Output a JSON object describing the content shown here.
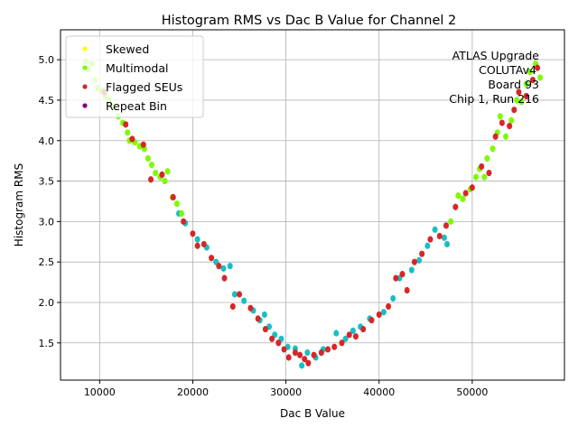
{
  "chart_data": {
    "type": "scatter",
    "title": "Histogram RMS vs Dac B Value for Channel 2",
    "xlabel": "Dac B Value",
    "ylabel": "Histogram RMS",
    "xlim": [
      5800,
      59900
    ],
    "ylim": [
      1.04,
      5.37
    ],
    "xticks": [
      10000,
      20000,
      30000,
      40000,
      50000
    ],
    "yticks": [
      1.5,
      2.0,
      2.5,
      3.0,
      3.5,
      4.0,
      4.5,
      5.0
    ],
    "xtick_labels": [
      "10000",
      "20000",
      "30000",
      "40000",
      "50000"
    ],
    "ytick_labels": [
      "1.5",
      "2.0",
      "2.5",
      "3.0",
      "3.5",
      "4.0",
      "4.5",
      "5.0"
    ],
    "grid": true,
    "legend_placement": "upper-left",
    "legend": [
      {
        "name": "Skewed",
        "color": "#ffff00"
      },
      {
        "name": "Multimodal",
        "color": "#7cfc00"
      },
      {
        "name": "Flagged SEUs",
        "color": "#d62728"
      },
      {
        "name": "Repeat Bin",
        "color": "#800080"
      }
    ],
    "annotation": [
      "ATLAS Upgrade",
      "COLUTAv4",
      "Board 93",
      "Chip 1, Run 216"
    ],
    "series": [
      {
        "color": "#17bfc4",
        "points": [
          [
            18500,
            3.1
          ],
          [
            19200,
            2.98
          ],
          [
            20500,
            2.78
          ],
          [
            21500,
            2.68
          ],
          [
            22500,
            2.5
          ],
          [
            23300,
            2.42
          ],
          [
            24000,
            2.45
          ],
          [
            24500,
            2.1
          ],
          [
            25500,
            2.02
          ],
          [
            26500,
            1.9
          ],
          [
            27200,
            1.78
          ],
          [
            27700,
            1.85
          ],
          [
            28200,
            1.7
          ],
          [
            28800,
            1.6
          ],
          [
            29500,
            1.55
          ],
          [
            30200,
            1.45
          ],
          [
            31000,
            1.43
          ],
          [
            31700,
            1.22
          ],
          [
            32300,
            1.38
          ],
          [
            33200,
            1.32
          ],
          [
            34000,
            1.42
          ],
          [
            35400,
            1.62
          ],
          [
            36400,
            1.55
          ],
          [
            37200,
            1.65
          ],
          [
            38000,
            1.7
          ],
          [
            39000,
            1.8
          ],
          [
            40500,
            1.88
          ],
          [
            41500,
            2.05
          ],
          [
            42200,
            2.3
          ],
          [
            43500,
            2.4
          ],
          [
            44300,
            2.52
          ],
          [
            45200,
            2.7
          ],
          [
            46000,
            2.9
          ],
          [
            47000,
            2.8
          ],
          [
            47300,
            2.72
          ]
        ]
      },
      {
        "name": "Multimodal",
        "color": "#7cfc00",
        "points": [
          [
            8500,
            4.98
          ],
          [
            8800,
            4.88
          ],
          [
            9200,
            4.95
          ],
          [
            9500,
            4.75
          ],
          [
            9800,
            4.65
          ],
          [
            10200,
            4.62
          ],
          [
            10600,
            4.55
          ],
          [
            11000,
            4.5
          ],
          [
            11500,
            4.42
          ],
          [
            12000,
            4.3
          ],
          [
            12500,
            4.22
          ],
          [
            13000,
            4.1
          ],
          [
            13200,
            4.0
          ],
          [
            13800,
            3.98
          ],
          [
            14300,
            3.93
          ],
          [
            14800,
            3.9
          ],
          [
            15200,
            3.78
          ],
          [
            15600,
            3.7
          ],
          [
            16000,
            3.6
          ],
          [
            16500,
            3.55
          ],
          [
            17000,
            3.5
          ],
          [
            17300,
            3.62
          ],
          [
            17800,
            3.3
          ],
          [
            18300,
            3.22
          ],
          [
            18800,
            3.1
          ],
          [
            47700,
            3.0
          ],
          [
            48500,
            3.32
          ],
          [
            49000,
            3.28
          ],
          [
            49800,
            3.4
          ],
          [
            50400,
            3.55
          ],
          [
            50800,
            3.65
          ],
          [
            51300,
            3.55
          ],
          [
            51600,
            3.78
          ],
          [
            52200,
            3.9
          ],
          [
            52700,
            4.1
          ],
          [
            53000,
            4.3
          ],
          [
            53600,
            4.05
          ],
          [
            54200,
            4.25
          ],
          [
            54800,
            4.5
          ],
          [
            55300,
            4.48
          ],
          [
            55800,
            4.7
          ],
          [
            56200,
            4.85
          ],
          [
            56800,
            4.95
          ],
          [
            57300,
            4.78
          ]
        ]
      },
      {
        "name": "Flagged SEUs",
        "color": "#d62728",
        "points": [
          [
            10500,
            4.6
          ],
          [
            12800,
            4.2
          ],
          [
            13500,
            4.02
          ],
          [
            14700,
            3.95
          ],
          [
            15500,
            3.52
          ],
          [
            16700,
            3.58
          ],
          [
            17900,
            3.3
          ],
          [
            19000,
            3.0
          ],
          [
            20000,
            2.85
          ],
          [
            20500,
            2.7
          ],
          [
            21200,
            2.72
          ],
          [
            22000,
            2.55
          ],
          [
            22800,
            2.45
          ],
          [
            23400,
            2.3
          ],
          [
            24300,
            1.95
          ],
          [
            25000,
            2.1
          ],
          [
            26200,
            1.93
          ],
          [
            27000,
            1.8
          ],
          [
            27800,
            1.67
          ],
          [
            28500,
            1.55
          ],
          [
            29200,
            1.5
          ],
          [
            29800,
            1.42
          ],
          [
            30300,
            1.32
          ],
          [
            31000,
            1.38
          ],
          [
            31500,
            1.35
          ],
          [
            32000,
            1.3
          ],
          [
            32400,
            1.25
          ],
          [
            33000,
            1.35
          ],
          [
            33800,
            1.38
          ],
          [
            34500,
            1.42
          ],
          [
            35200,
            1.45
          ],
          [
            36000,
            1.5
          ],
          [
            36800,
            1.6
          ],
          [
            37500,
            1.58
          ],
          [
            38300,
            1.67
          ],
          [
            39200,
            1.78
          ],
          [
            40000,
            1.85
          ],
          [
            41000,
            1.95
          ],
          [
            41800,
            2.3
          ],
          [
            42500,
            2.35
          ],
          [
            43000,
            2.15
          ],
          [
            43800,
            2.5
          ],
          [
            44600,
            2.6
          ],
          [
            45500,
            2.78
          ],
          [
            46500,
            2.82
          ],
          [
            47200,
            2.95
          ],
          [
            48200,
            3.18
          ],
          [
            49300,
            3.35
          ],
          [
            50000,
            3.42
          ],
          [
            51000,
            3.68
          ],
          [
            51800,
            3.6
          ],
          [
            52500,
            4.05
          ],
          [
            53200,
            4.22
          ],
          [
            54000,
            4.18
          ],
          [
            54500,
            4.38
          ],
          [
            55000,
            4.6
          ],
          [
            55800,
            4.55
          ],
          [
            56500,
            4.75
          ],
          [
            57000,
            4.9
          ]
        ]
      }
    ]
  }
}
